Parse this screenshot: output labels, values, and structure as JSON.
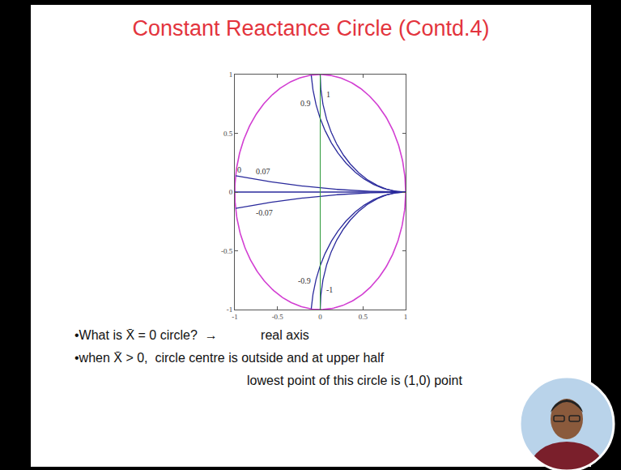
{
  "chart_data": {
    "type": "line",
    "title": "Constant Reactance Circle (Contd.4)",
    "values": [
      1,
      0.9,
      0.07,
      0,
      -0.07,
      -0.9,
      -1
    ],
    "color": "#2a2a9c",
    "xlim": [
      -1,
      1
    ],
    "ylim": [
      -1,
      1
    ],
    "xticks": [
      -1,
      -0.5,
      0,
      0.5,
      1
    ],
    "yticks": [
      -1,
      -0.5,
      0,
      0.5,
      1
    ],
    "grid": false,
    "annotations": [
      [
        "•What is X̄ = 0 circle?  →            real axis"
      ],
      [
        "•when X̄ > 0,  circle centre is outside and at upper half",
        "lowest point of this circle is (1,0) point"
      ]
    ]
  }
}
